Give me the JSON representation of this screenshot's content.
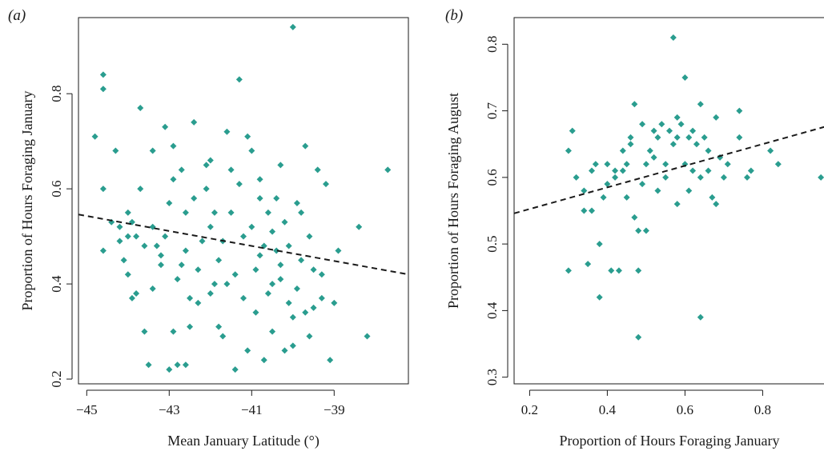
{
  "chart_data": [
    {
      "panel_label": "(a)",
      "type": "scatter",
      "xlabel": "Mean January Latitude (°)",
      "ylabel": "Proportion of Hours Foraging January",
      "xlim": [
        -45.2,
        -37.2
      ],
      "ylim": [
        0.19,
        0.96
      ],
      "xticks": [
        -45,
        -43,
        -41,
        -39
      ],
      "xtick_labels": [
        "−45",
        "−43",
        "−41",
        "−39"
      ],
      "yticks": [
        0.2,
        0.4,
        0.6,
        0.8
      ],
      "yticks_labels": [
        "0.2",
        "0.4",
        "0.6",
        "0.8"
      ],
      "marker_color": "#2a9d8f",
      "trend_line": {
        "style": "dashed",
        "color": "#1a1a1a",
        "x": [
          -45.2,
          -37.2
        ],
        "y": [
          0.546,
          0.42
        ]
      },
      "points": [
        [
          -44.8,
          0.71
        ],
        [
          -44.6,
          0.84
        ],
        [
          -44.6,
          0.81
        ],
        [
          -44.6,
          0.6
        ],
        [
          -44.6,
          0.47
        ],
        [
          -44.3,
          0.68
        ],
        [
          -44.2,
          0.52
        ],
        [
          -44.2,
          0.49
        ],
        [
          -44.1,
          0.45
        ],
        [
          -44.0,
          0.42
        ],
        [
          -44.0,
          0.55
        ],
        [
          -43.9,
          0.53
        ],
        [
          -43.8,
          0.38
        ],
        [
          -43.8,
          0.5
        ],
        [
          -43.7,
          0.6
        ],
        [
          -43.7,
          0.77
        ],
        [
          -43.6,
          0.3
        ],
        [
          -43.5,
          0.23
        ],
        [
          -43.4,
          0.68
        ],
        [
          -43.4,
          0.39
        ],
        [
          -43.3,
          0.48
        ],
        [
          -43.2,
          0.44
        ],
        [
          -43.1,
          0.5
        ],
        [
          -43.1,
          0.73
        ],
        [
          -43.0,
          0.22
        ],
        [
          -43.0,
          0.57
        ],
        [
          -42.9,
          0.69
        ],
        [
          -42.9,
          0.3
        ],
        [
          -42.8,
          0.23
        ],
        [
          -42.7,
          0.64
        ],
        [
          -42.6,
          0.23
        ],
        [
          -42.6,
          0.47
        ],
        [
          -42.5,
          0.37
        ],
        [
          -42.4,
          0.58
        ],
        [
          -42.4,
          0.74
        ],
        [
          -42.3,
          0.43
        ],
        [
          -42.2,
          0.49
        ],
        [
          -42.1,
          0.65
        ],
        [
          -42.0,
          0.38
        ],
        [
          -42.0,
          0.66
        ],
        [
          -41.9,
          0.55
        ],
        [
          -41.8,
          0.31
        ],
        [
          -41.7,
          0.49
        ],
        [
          -41.6,
          0.72
        ],
        [
          -41.5,
          0.64
        ],
        [
          -41.4,
          0.42
        ],
        [
          -41.4,
          0.22
        ],
        [
          -41.3,
          0.83
        ],
        [
          -41.2,
          0.5
        ],
        [
          -41.1,
          0.71
        ],
        [
          -41.0,
          0.68
        ],
        [
          -40.9,
          0.34
        ],
        [
          -40.8,
          0.62
        ],
        [
          -40.8,
          0.46
        ],
        [
          -40.7,
          0.24
        ],
        [
          -40.6,
          0.55
        ],
        [
          -40.5,
          0.51
        ],
        [
          -40.5,
          0.4
        ],
        [
          -40.4,
          0.58
        ],
        [
          -40.3,
          0.65
        ],
        [
          -40.2,
          0.26
        ],
        [
          -40.1,
          0.48
        ],
        [
          -40.0,
          0.94
        ],
        [
          -40.0,
          0.33
        ],
        [
          -39.9,
          0.57
        ],
        [
          -39.8,
          0.45
        ],
        [
          -39.7,
          0.69
        ],
        [
          -39.6,
          0.29
        ],
        [
          -39.5,
          0.35
        ],
        [
          -39.4,
          0.64
        ],
        [
          -39.3,
          0.42
        ],
        [
          -39.2,
          0.61
        ],
        [
          -39.1,
          0.24
        ],
        [
          -39.0,
          0.36
        ],
        [
          -38.9,
          0.47
        ],
        [
          -38.4,
          0.52
        ],
        [
          -38.2,
          0.29
        ],
        [
          -37.7,
          0.64
        ],
        [
          -44.4,
          0.53
        ],
        [
          -44.0,
          0.5
        ],
        [
          -43.6,
          0.48
        ],
        [
          -43.2,
          0.46
        ],
        [
          -42.8,
          0.41
        ],
        [
          -42.6,
          0.55
        ],
        [
          -42.3,
          0.36
        ],
        [
          -42.0,
          0.52
        ],
        [
          -41.8,
          0.45
        ],
        [
          -41.6,
          0.4
        ],
        [
          -41.5,
          0.55
        ],
        [
          -41.2,
          0.37
        ],
        [
          -41.0,
          0.52
        ],
        [
          -40.9,
          0.43
        ],
        [
          -40.7,
          0.48
        ],
        [
          -40.6,
          0.38
        ],
        [
          -40.4,
          0.47
        ],
        [
          -40.3,
          0.41
        ],
        [
          -40.1,
          0.36
        ],
        [
          -39.9,
          0.39
        ],
        [
          -39.7,
          0.34
        ],
        [
          -39.5,
          0.43
        ],
        [
          -39.3,
          0.37
        ],
        [
          -42.9,
          0.62
        ],
        [
          -42.1,
          0.6
        ],
        [
          -41.3,
          0.61
        ],
        [
          -40.8,
          0.58
        ],
        [
          -40.2,
          0.53
        ],
        [
          -41.7,
          0.29
        ],
        [
          -40.5,
          0.3
        ],
        [
          -42.5,
          0.31
        ],
        [
          -43.9,
          0.37
        ],
        [
          -40.0,
          0.27
        ],
        [
          -41.1,
          0.26
        ],
        [
          -39.8,
          0.55
        ],
        [
          -43.4,
          0.52
        ],
        [
          -42.7,
          0.44
        ],
        [
          -41.9,
          0.4
        ],
        [
          -40.3,
          0.44
        ],
        [
          -39.6,
          0.5
        ]
      ]
    },
    {
      "panel_label": "(b)",
      "type": "scatter",
      "xlabel": "Proportion of Hours Foraging January",
      "ylabel": "Proportion of Hours Foraging August",
      "xlim": [
        0.16,
        0.96
      ],
      "ylim": [
        0.29,
        0.84
      ],
      "xticks": [
        0.2,
        0.4,
        0.6,
        0.8
      ],
      "xtick_labels": [
        "0.2",
        "0.4",
        "0.6",
        "0.8"
      ],
      "yticks": [
        0.3,
        0.4,
        0.5,
        0.6,
        0.7,
        0.8
      ],
      "yticks_labels": [
        "0.3",
        "0.4",
        "0.5",
        "0.6",
        "0.7",
        "0.8"
      ],
      "marker_color": "#2a9d8f",
      "trend_line": {
        "style": "dashed",
        "color": "#1a1a1a",
        "x": [
          0.16,
          0.96
        ],
        "y": [
          0.546,
          0.676
        ]
      },
      "points": [
        [
          0.3,
          0.46
        ],
        [
          0.3,
          0.64
        ],
        [
          0.31,
          0.67
        ],
        [
          0.32,
          0.6
        ],
        [
          0.34,
          0.58
        ],
        [
          0.34,
          0.55
        ],
        [
          0.35,
          0.47
        ],
        [
          0.36,
          0.61
        ],
        [
          0.37,
          0.62
        ],
        [
          0.38,
          0.5
        ],
        [
          0.38,
          0.42
        ],
        [
          0.39,
          0.57
        ],
        [
          0.4,
          0.59
        ],
        [
          0.41,
          0.46
        ],
        [
          0.42,
          0.6
        ],
        [
          0.42,
          0.61
        ],
        [
          0.43,
          0.46
        ],
        [
          0.44,
          0.64
        ],
        [
          0.45,
          0.57
        ],
        [
          0.45,
          0.62
        ],
        [
          0.46,
          0.66
        ],
        [
          0.47,
          0.54
        ],
        [
          0.47,
          0.71
        ],
        [
          0.48,
          0.36
        ],
        [
          0.48,
          0.46
        ],
        [
          0.48,
          0.52
        ],
        [
          0.49,
          0.68
        ],
        [
          0.5,
          0.52
        ],
        [
          0.5,
          0.62
        ],
        [
          0.51,
          0.64
        ],
        [
          0.52,
          0.67
        ],
        [
          0.53,
          0.58
        ],
        [
          0.53,
          0.66
        ],
        [
          0.54,
          0.68
        ],
        [
          0.55,
          0.62
        ],
        [
          0.56,
          0.67
        ],
        [
          0.57,
          0.81
        ],
        [
          0.58,
          0.66
        ],
        [
          0.58,
          0.56
        ],
        [
          0.59,
          0.68
        ],
        [
          0.6,
          0.75
        ],
        [
          0.6,
          0.62
        ],
        [
          0.61,
          0.58
        ],
        [
          0.62,
          0.67
        ],
        [
          0.63,
          0.65
        ],
        [
          0.64,
          0.39
        ],
        [
          0.64,
          0.6
        ],
        [
          0.65,
          0.66
        ],
        [
          0.66,
          0.64
        ],
        [
          0.67,
          0.57
        ],
        [
          0.68,
          0.69
        ],
        [
          0.69,
          0.63
        ],
        [
          0.7,
          0.6
        ],
        [
          0.71,
          0.62
        ],
        [
          0.74,
          0.7
        ],
        [
          0.74,
          0.66
        ],
        [
          0.76,
          0.6
        ],
        [
          0.77,
          0.61
        ],
        [
          0.82,
          0.64
        ],
        [
          0.84,
          0.62
        ],
        [
          0.95,
          0.6
        ],
        [
          0.44,
          0.61
        ],
        [
          0.46,
          0.65
        ],
        [
          0.52,
          0.63
        ],
        [
          0.55,
          0.6
        ],
        [
          0.57,
          0.65
        ],
        [
          0.61,
          0.66
        ],
        [
          0.64,
          0.71
        ],
        [
          0.66,
          0.61
        ],
        [
          0.68,
          0.56
        ],
        [
          0.4,
          0.62
        ],
        [
          0.36,
          0.55
        ],
        [
          0.49,
          0.59
        ],
        [
          0.58,
          0.69
        ],
        [
          0.62,
          0.61
        ]
      ]
    }
  ]
}
